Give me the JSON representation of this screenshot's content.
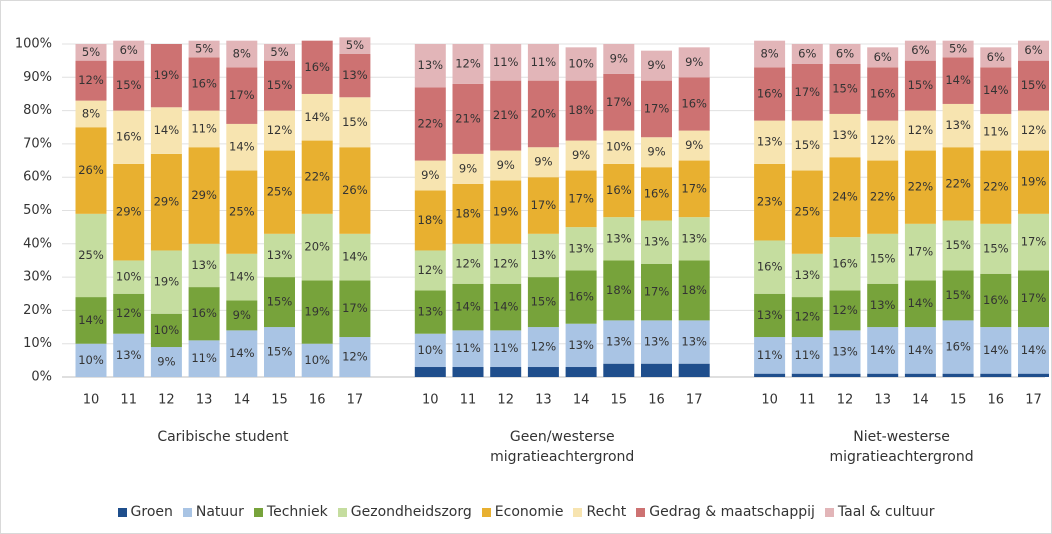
{
  "chart_data": {
    "type": "stacked_bar",
    "categories": [
      "10",
      "11",
      "12",
      "13",
      "14",
      "15",
      "16",
      "17",
      "10",
      "11",
      "12",
      "13",
      "14",
      "15",
      "16",
      "17",
      "10",
      "11",
      "12",
      "13",
      "14",
      "15",
      "16",
      "17"
    ],
    "groups": [
      "Caribische student",
      "Geen/westerse migratieachtergrond",
      "Niet-westerse migratieachtergrond"
    ],
    "ylim": [
      0,
      100
    ],
    "yticks": [
      {
        "value": 0,
        "label": "0%"
      },
      {
        "value": 10,
        "label": "10%"
      },
      {
        "value": 20,
        "label": "20%"
      },
      {
        "value": 30,
        "label": "30%"
      },
      {
        "value": 40,
        "label": "40%"
      },
      {
        "value": 50,
        "label": "50%"
      },
      {
        "value": 60,
        "label": "60%"
      },
      {
        "value": 70,
        "label": "70%"
      },
      {
        "value": 80,
        "label": "80%"
      },
      {
        "value": 90,
        "label": "90%"
      },
      {
        "value": 100,
        "label": "100%"
      }
    ],
    "grid": true,
    "legend": "bottom",
    "series": [
      {
        "name": "Groen",
        "color": "#1f4e8c",
        "values": [
          0,
          0,
          0,
          0,
          0,
          0,
          0,
          0,
          3,
          3,
          3,
          3,
          3,
          4,
          4,
          4,
          1,
          1,
          1,
          1,
          1,
          1,
          1,
          1
        ]
      },
      {
        "name": "Natuur",
        "color": "#a9c4e4",
        "values": [
          10,
          13,
          9,
          11,
          14,
          15,
          10,
          12,
          10,
          11,
          11,
          12,
          13,
          13,
          13,
          13,
          11,
          11,
          13,
          14,
          14,
          16,
          14,
          14
        ],
        "value_labels": [
          "10%",
          "13%",
          "9%",
          "11%",
          "14%",
          "15%",
          "10%",
          "12%",
          "10%",
          "11%",
          "11%",
          "12%",
          "13%",
          "13%",
          "13%",
          "13%",
          "11%",
          "11%",
          "13%",
          "14%",
          "14%",
          "16%",
          "14%",
          "14%"
        ]
      },
      {
        "name": "Techniek",
        "color": "#77a33b",
        "values": [
          14,
          12,
          10,
          16,
          9,
          15,
          19,
          17,
          13,
          14,
          14,
          15,
          16,
          18,
          17,
          18,
          13,
          12,
          12,
          13,
          14,
          15,
          16,
          17
        ],
        "value_labels": [
          "14%",
          "12%",
          "10%",
          "16%",
          "9%",
          "15%",
          "19%",
          "17%",
          "13%",
          "14%",
          "14%",
          "15%",
          "16%",
          "18%",
          "17%",
          "18%",
          "13%",
          "12%",
          "12%",
          "13%",
          "14%",
          "15%",
          "16%",
          "17%"
        ]
      },
      {
        "name": "Gezondheidszorg",
        "color": "#c5dd9f",
        "values": [
          25,
          10,
          19,
          13,
          14,
          13,
          20,
          14,
          12,
          12,
          12,
          13,
          13,
          13,
          13,
          13,
          16,
          13,
          16,
          15,
          17,
          15,
          15,
          17
        ],
        "value_labels": [
          "25%",
          "10%",
          "19%",
          "13%",
          "14%",
          "13%",
          "20%",
          "14%",
          "12%",
          "12%",
          "12%",
          "13%",
          "13%",
          "13%",
          "13%",
          "13%",
          "16%",
          "13%",
          "16%",
          "15%",
          "17%",
          "15%",
          "15%",
          "17%"
        ]
      },
      {
        "name": "Economie",
        "color": "#e8b030",
        "values": [
          26,
          29,
          29,
          29,
          25,
          25,
          22,
          26,
          18,
          18,
          19,
          17,
          17,
          16,
          16,
          17,
          23,
          25,
          24,
          22,
          22,
          22,
          22,
          19
        ],
        "value_labels": [
          "26%",
          "29%",
          "29%",
          "29%",
          "25%",
          "25%",
          "22%",
          "26%",
          "18%",
          "18%",
          "19%",
          "17%",
          "17%",
          "16%",
          "16%",
          "17%",
          "23%",
          "25%",
          "24%",
          "22%",
          "22%",
          "22%",
          "22%",
          "19%"
        ]
      },
      {
        "name": "Recht",
        "color": "#f7e4b0",
        "values": [
          8,
          16,
          14,
          11,
          14,
          12,
          14,
          15,
          9,
          9,
          9,
          9,
          9,
          10,
          9,
          9,
          13,
          15,
          13,
          12,
          12,
          13,
          11,
          12
        ],
        "value_labels": [
          "8%",
          "16%",
          "14%",
          "11%",
          "14%",
          "12%",
          "14%",
          "15%",
          "9%",
          "9%",
          "9%",
          "9%",
          "9%",
          "10%",
          "9%",
          "9%",
          "13%",
          "15%",
          "13%",
          "12%",
          "12%",
          "13%",
          "11%",
          "12%"
        ]
      },
      {
        "name": "Gedrag & maatschappij",
        "color": "#cd7272",
        "values": [
          12,
          15,
          19,
          16,
          17,
          15,
          16,
          13,
          22,
          21,
          21,
          20,
          18,
          17,
          17,
          16,
          16,
          17,
          15,
          16,
          15,
          14,
          14,
          15
        ],
        "value_labels": [
          "12%",
          "15%",
          "19%",
          "16%",
          "17%",
          "15%",
          "16%",
          "13%",
          "22%",
          "21%",
          "21%",
          "20%",
          "18%",
          "17%",
          "17%",
          "16%",
          "16%",
          "17%",
          "15%",
          "16%",
          "15%",
          "14%",
          "14%",
          "15%"
        ]
      },
      {
        "name": "Taal & cultuur",
        "color": "#e2b5b8",
        "values": [
          5,
          6,
          0,
          5,
          8,
          5,
          0,
          5,
          13,
          12,
          11,
          11,
          10,
          9,
          9,
          9,
          8,
          6,
          6,
          6,
          6,
          5,
          6,
          6
        ],
        "value_labels": [
          "5%",
          "6%",
          null,
          "5%",
          "8%",
          "5%",
          null,
          "5%",
          "13%",
          "12%",
          "11%",
          "11%",
          "10%",
          "9%",
          "9%",
          "9%",
          "8%",
          "6%",
          "6%",
          "6%",
          "6%",
          "5%",
          "6%",
          "6%"
        ]
      }
    ]
  }
}
